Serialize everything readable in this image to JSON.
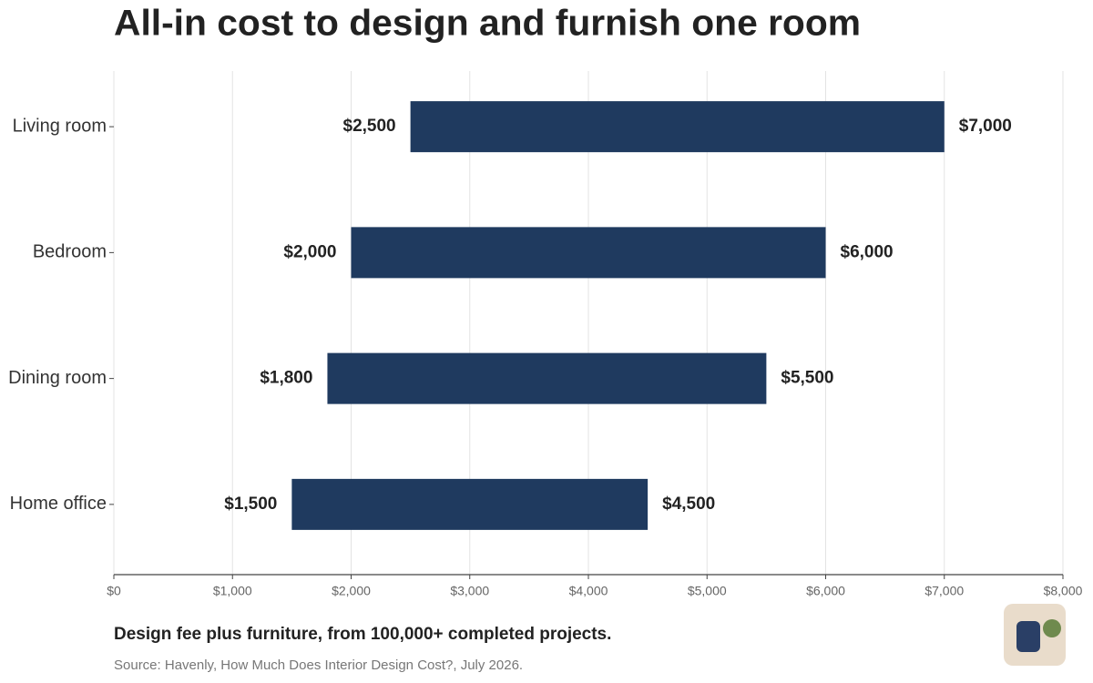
{
  "chart_data": {
    "type": "range-bar",
    "title": "All-in cost to design and furnish one room",
    "subtitle": "Design fee plus furniture, from 100,000+ completed projects.",
    "source": "Source: Havenly, How Much Does Interior Design Cost?, July 2026.",
    "categories": [
      "Living room",
      "Bedroom",
      "Dining room",
      "Home office"
    ],
    "values": [
      [
        2500,
        7000
      ],
      [
        2000,
        6000
      ],
      [
        1800,
        5500
      ],
      [
        1500,
        4500
      ]
    ],
    "value_labels": [
      [
        "$2,500",
        "$7,000"
      ],
      [
        "$2,000",
        "$6,000"
      ],
      [
        "$1,800",
        "$5,500"
      ],
      [
        "$1,500",
        "$4,500"
      ]
    ],
    "color": "#1f3a5f",
    "xlim": [
      0,
      8000
    ],
    "xticks": [
      {
        "value": 0,
        "label": "$0"
      },
      {
        "value": 1000,
        "label": "$1,000"
      },
      {
        "value": 2000,
        "label": "$2,000"
      },
      {
        "value": 3000,
        "label": "$3,000"
      },
      {
        "value": 4000,
        "label": "$4,000"
      },
      {
        "value": 5000,
        "label": "$5,000"
      },
      {
        "value": 6000,
        "label": "$6,000"
      },
      {
        "value": 7000,
        "label": "$7,000"
      },
      {
        "value": 8000,
        "label": "$8,000"
      }
    ],
    "grid": true
  }
}
